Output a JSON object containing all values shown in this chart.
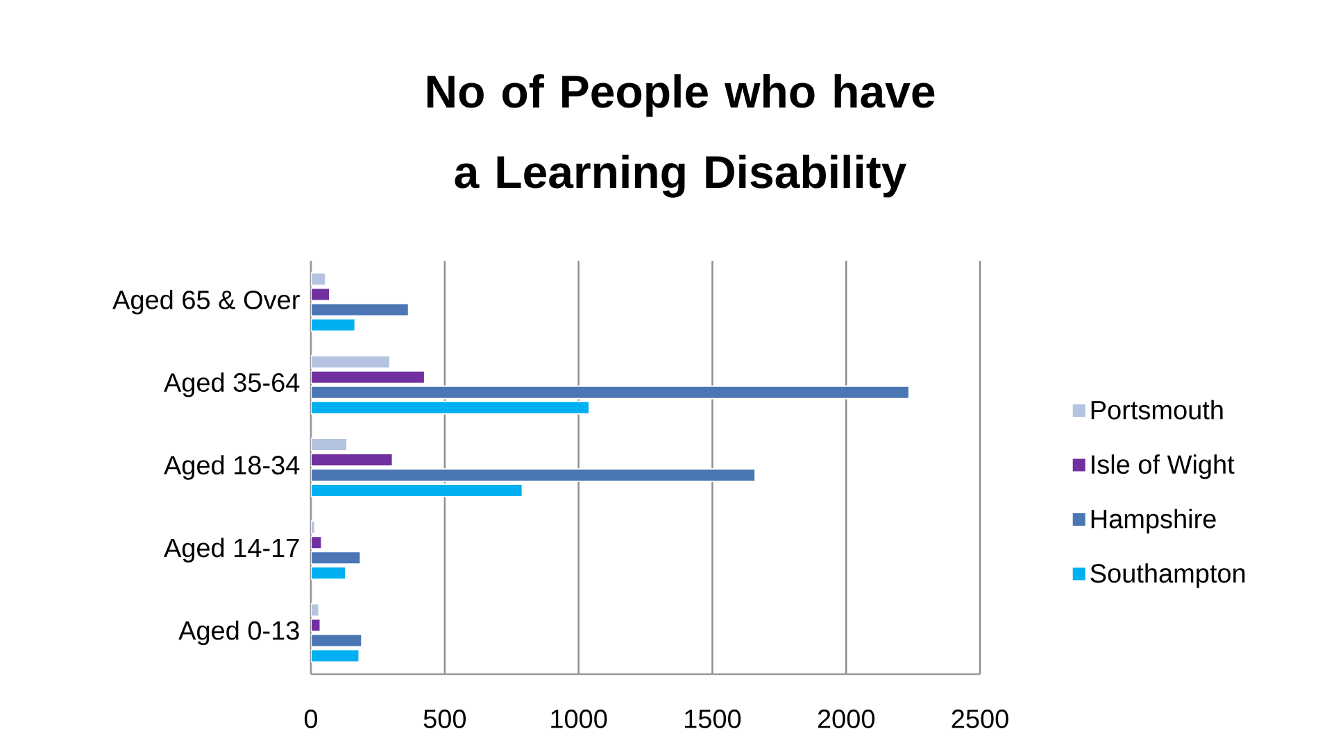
{
  "chart_data": {
    "type": "bar",
    "orientation": "horizontal",
    "title": "No of People who have a Learning Disability",
    "categories": [
      "Aged 65 & Over",
      "Aged 35-64",
      "Aged 18-34",
      "Aged 14-17",
      "Aged 0-13"
    ],
    "series": [
      {
        "name": "Portsmouth",
        "color": "#b4c3e0",
        "values": [
          55,
          295,
          135,
          15,
          30
        ]
      },
      {
        "name": "Isle of Wight",
        "color": "#7030a0",
        "values": [
          70,
          425,
          305,
          40,
          35
        ]
      },
      {
        "name": "Hampshire",
        "color": "#4a77b4",
        "values": [
          365,
          2235,
          1660,
          185,
          190
        ]
      },
      {
        "name": "Southampton",
        "color": "#00b0f0",
        "values": [
          165,
          1040,
          790,
          130,
          180
        ]
      }
    ],
    "xlim": [
      0,
      2500
    ],
    "xticks": [
      0,
      500,
      1000,
      1500,
      2000,
      2500
    ],
    "grid": "x",
    "legend": "right"
  }
}
